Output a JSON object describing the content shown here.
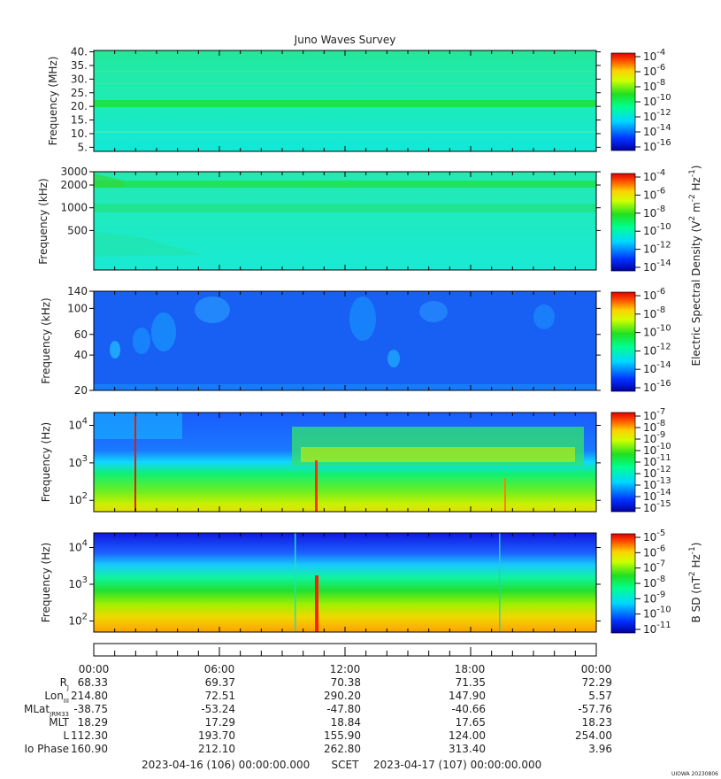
{
  "chart_data": {
    "type": "heatmap",
    "title": "Juno Waves Survey",
    "panels": [
      {
        "id": "hfr-high",
        "ylabel": "Frequency (MHz)",
        "yticks": [
          "40.",
          "35.",
          "30.",
          "25.",
          "20.",
          "15.",
          "10.",
          "5."
        ],
        "yscale": "linear",
        "ylim": [
          3.5,
          40.5
        ],
        "cbar_ticks": [
          {
            "base": "10",
            "exp": "-4"
          },
          {
            "base": "10",
            "exp": "-6"
          },
          {
            "base": "10",
            "exp": "-8"
          },
          {
            "base": "10",
            "exp": "-10"
          },
          {
            "base": "10",
            "exp": "-12"
          },
          {
            "base": "10",
            "exp": "-14"
          },
          {
            "base": "10",
            "exp": "-16"
          }
        ],
        "features": [
          "uniform cyan-green background",
          "bright green band near 21 MHz"
        ]
      },
      {
        "id": "hfr-low",
        "ylabel": "Frequency (kHz)",
        "yticks": [
          "3000",
          "2000",
          "1000",
          "500"
        ],
        "yscale": "log",
        "ylim": [
          150,
          3000
        ],
        "cbar_ticks": [
          {
            "base": "10",
            "exp": "-4"
          },
          {
            "base": "10",
            "exp": "-6"
          },
          {
            "base": "10",
            "exp": "-8"
          },
          {
            "base": "10",
            "exp": "-10"
          },
          {
            "base": "10",
            "exp": "-12"
          },
          {
            "base": "10",
            "exp": "-14"
          }
        ],
        "features": [
          "green bands near 2000 kHz and 1000 kHz",
          "diffuse emission below 500 kHz early in day"
        ]
      },
      {
        "id": "lfr-high",
        "ylabel": "Frequency (kHz)",
        "yticks": [
          "140",
          "100",
          "60",
          "40",
          "20"
        ],
        "yscale": "log",
        "ylim": [
          20,
          140
        ],
        "cbar_ticks": [
          {
            "base": "10",
            "exp": "-6"
          },
          {
            "base": "10",
            "exp": "-8"
          },
          {
            "base": "10",
            "exp": "-10"
          },
          {
            "base": "10",
            "exp": "-12"
          },
          {
            "base": "10",
            "exp": "-14"
          },
          {
            "base": "10",
            "exp": "-16"
          }
        ],
        "features": [
          "blue background",
          "cyan patchy emissions 01:00-05:00 and 13:00-17:00"
        ]
      },
      {
        "id": "lfr-low",
        "ylabel": "Frequency (Hz)",
        "yticks": [
          {
            "base": "10",
            "exp": "4"
          },
          {
            "base": "10",
            "exp": "3"
          },
          {
            "base": "10",
            "exp": "2"
          }
        ],
        "yscale": "log",
        "ylim": [
          50,
          22000
        ],
        "cbar_ticks": [
          {
            "base": "10",
            "exp": "-7"
          },
          {
            "base": "10",
            "exp": "-8"
          },
          {
            "base": "10",
            "exp": "-9"
          },
          {
            "base": "10",
            "exp": "-10"
          },
          {
            "base": "10",
            "exp": "-11"
          },
          {
            "base": "10",
            "exp": "-12"
          },
          {
            "base": "10",
            "exp": "-13"
          },
          {
            "base": "10",
            "exp": "-14"
          },
          {
            "base": "10",
            "exp": "-15"
          }
        ],
        "features": [
          "yellow-green emission below 1 kHz",
          "emission band 1-4 kHz from 09:30 to 23:30",
          "red spikes near 02:00 and 11:00"
        ]
      },
      {
        "id": "magnetic",
        "ylabel": "Frequency (Hz)",
        "yticks": [
          {
            "base": "10",
            "exp": "4"
          },
          {
            "base": "10",
            "exp": "3"
          },
          {
            "base": "10",
            "exp": "2"
          }
        ],
        "yscale": "log",
        "ylim": [
          50,
          25000
        ],
        "cbar_ticks": [
          {
            "base": "10",
            "exp": "-5"
          },
          {
            "base": "10",
            "exp": "-6"
          },
          {
            "base": "10",
            "exp": "-7"
          },
          {
            "base": "10",
            "exp": "-8"
          },
          {
            "base": "10",
            "exp": "-9"
          },
          {
            "base": "10",
            "exp": "-10"
          },
          {
            "base": "10",
            "exp": "-11"
          }
        ],
        "features": [
          "vertical gradient: orange below 100 Hz to blue above 10 kHz",
          "red spike near 10:50"
        ]
      }
    ],
    "electric_cbar_label": {
      "pre": "Electric Spectral Density (V",
      "sup1": "2",
      "mid": " m",
      "sup2": "-2",
      "mid2": " Hz",
      "sup3": "-1",
      "post": ")"
    },
    "magnetic_cbar_label": {
      "pre": "B SD (nT",
      "sup1": "2",
      "mid": " Hz",
      "sup2": "-1",
      "post": ")"
    },
    "x_time_ticks": [
      "00:00",
      "06:00",
      "12:00",
      "18:00",
      "00:00"
    ],
    "ephemeris": [
      {
        "label": "R",
        "sub": "J",
        "values": [
          "68.33",
          "69.37",
          "70.38",
          "71.35",
          "72.29"
        ]
      },
      {
        "label": "Lon",
        "sub": "III",
        "values": [
          "214.80",
          "72.51",
          "290.20",
          "147.90",
          "5.57"
        ]
      },
      {
        "label": "MLat",
        "sub": "JRM33",
        "values": [
          "-38.75",
          "-53.24",
          "-47.80",
          "-40.66",
          "-57.76"
        ]
      },
      {
        "label": "MLT",
        "sub": "",
        "values": [
          "18.29",
          "17.29",
          "18.84",
          "17.65",
          "18.23"
        ]
      },
      {
        "label": "L",
        "sub": "",
        "values": [
          "112.30",
          "193.70",
          "155.90",
          "124.00",
          "254.00"
        ]
      },
      {
        "label": "Io Phase",
        "sub": "",
        "values": [
          "160.90",
          "212.10",
          "262.80",
          "313.40",
          "3.96"
        ]
      }
    ],
    "x_start": "2023-04-16 (106) 00:00:00.000",
    "x_center_label": "SCET",
    "x_end": "2023-04-17 (107) 00:00:00.000",
    "credit": "UIOWA 20230806"
  }
}
